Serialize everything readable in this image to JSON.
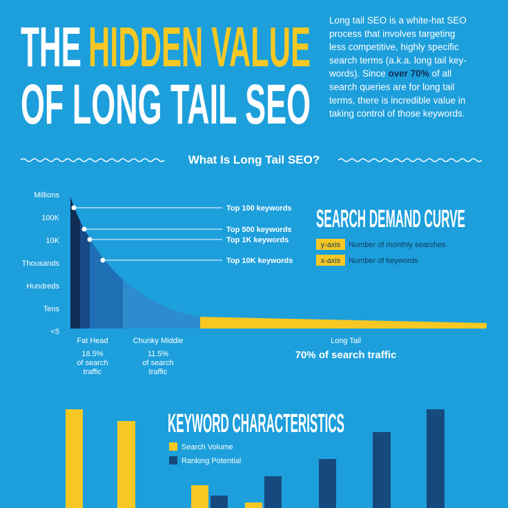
{
  "header": {
    "title_white": "THE",
    "title_yellow": "HIDDEN VALUE",
    "title_line2": "OF LONG TAIL SEO",
    "intro": {
      "lines_before": [
        "Long tail SEO is a white-hat SEO",
        "process that involves targeting",
        "less competitive, highly specific",
        "search terms (a.k.a. long tail key-"
      ],
      "line_start": "words). Since ",
      "highlight": "over 70%",
      "line_end": " of all",
      "lines_after": [
        "search queries are for long tail",
        "terms, there is incredible value in",
        "taking control of those keywords."
      ]
    }
  },
  "section_heading": "What Is Long Tail SEO?",
  "demand_curve": {
    "title": "SEARCH DEMAND CURVE",
    "y_labels": [
      "Millions",
      "100K",
      "10K",
      "Thousands",
      "Hundreds",
      "Tens",
      "<5"
    ],
    "markers": [
      "Top 100 keywords",
      "Top 500 keywords",
      "Top 1K keywords",
      "Top 10K keywords"
    ],
    "legend": [
      {
        "key": "y-axis",
        "text": "Number of monthly searches"
      },
      {
        "key": "x-axis",
        "text": "Number of keywords"
      }
    ],
    "segments": [
      {
        "name": "Fat Head",
        "share": "18.5%",
        "note": [
          "of search",
          "traffic"
        ]
      },
      {
        "name": "Chunky Middle",
        "share": "11.5%",
        "note": [
          "of search",
          "traffic"
        ]
      },
      {
        "name": "Long Tail",
        "share": "70% of search traffic"
      }
    ]
  },
  "keyword_characteristics": {
    "title": "KEYWORD CHARACTERISTICS",
    "legend": [
      "Search Volume",
      "Ranking Potential"
    ]
  }
}
